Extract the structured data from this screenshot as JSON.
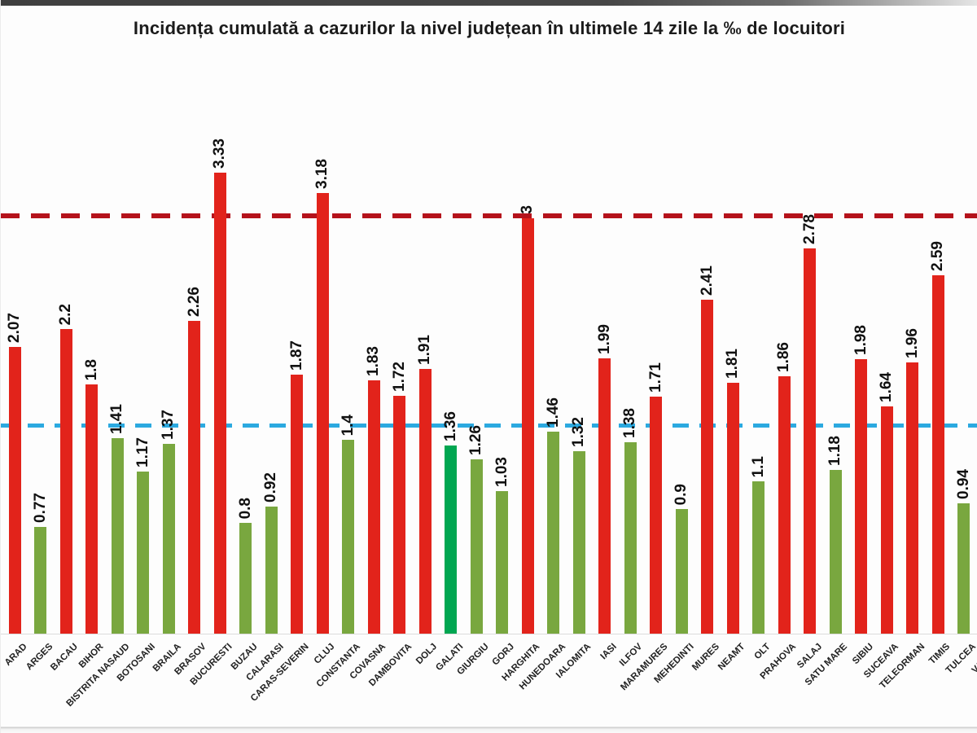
{
  "chart_data": {
    "type": "bar",
    "title": "Incidența cumulată a cazurilor la nivel județean în ultimele 14 zile la ‰ de locuitori",
    "ylabel": "",
    "xlabel": "",
    "ylim": [
      0,
      3.5
    ],
    "grid": "off",
    "legend": "none",
    "thresholds": {
      "red_reference_line": 3.0,
      "blue_reference_line": 1.5
    },
    "colors": {
      "bar_high": "#E2231B",
      "bar_low": "#79A73F",
      "bar_special": "#00A651",
      "red_line": "#B5121B",
      "blue_line": "#2BA9E0"
    },
    "bars": [
      {
        "label": "ARAD",
        "value": 2.07,
        "text": "2.07",
        "level": "high"
      },
      {
        "label": "ARGES",
        "value": 0.77,
        "text": "0.77",
        "level": "low"
      },
      {
        "label": "BACAU",
        "value": 2.2,
        "text": "2.2",
        "level": "high"
      },
      {
        "label": "BIHOR",
        "value": 1.8,
        "text": "1.8",
        "level": "high"
      },
      {
        "label": "BISTRITA NASAUD",
        "value": 1.41,
        "text": "1.41",
        "level": "low"
      },
      {
        "label": "BOTOSANI",
        "value": 1.17,
        "text": "1.17",
        "level": "low"
      },
      {
        "label": "BRAILA",
        "value": 1.37,
        "text": "1.37",
        "level": "low"
      },
      {
        "label": "BRASOV",
        "value": 2.26,
        "text": "2.26",
        "level": "high"
      },
      {
        "label": "BUCURESTI",
        "value": 3.33,
        "text": "3.33",
        "level": "high"
      },
      {
        "label": "BUZAU",
        "value": 0.8,
        "text": "0.8",
        "level": "low"
      },
      {
        "label": "CALARASI",
        "value": 0.92,
        "text": "0.92",
        "level": "low"
      },
      {
        "label": "CARAS-SEVERIN",
        "value": 1.87,
        "text": "1.87",
        "level": "high"
      },
      {
        "label": "CLUJ",
        "value": 3.18,
        "text": "3.18",
        "level": "high"
      },
      {
        "label": "CONSTANTA",
        "value": 1.4,
        "text": "1.4",
        "level": "low"
      },
      {
        "label": "COVASNA",
        "value": 1.83,
        "text": "1.83",
        "level": "high"
      },
      {
        "label": "DAMBOVITA",
        "value": 1.72,
        "text": "1.72",
        "level": "high"
      },
      {
        "label": "DOLJ",
        "value": 1.91,
        "text": "1.91",
        "level": "high"
      },
      {
        "label": "GALATI",
        "value": 1.36,
        "text": "1.36",
        "level": "special"
      },
      {
        "label": "GIURGIU",
        "value": 1.26,
        "text": "1.26",
        "level": "low"
      },
      {
        "label": "GORJ",
        "value": 1.03,
        "text": "1.03",
        "level": "low"
      },
      {
        "label": "HARGHITA",
        "value": 3,
        "text": "3",
        "level": "high"
      },
      {
        "label": "HUNEDOARA",
        "value": 1.46,
        "text": "1.46",
        "level": "low"
      },
      {
        "label": "IALOMITA",
        "value": 1.32,
        "text": "1.32",
        "level": "low"
      },
      {
        "label": "IASI",
        "value": 1.99,
        "text": "1.99",
        "level": "high"
      },
      {
        "label": "ILFOV",
        "value": 1.38,
        "text": "1.38",
        "level": "low"
      },
      {
        "label": "MARAMURES",
        "value": 1.71,
        "text": "1.71",
        "level": "high"
      },
      {
        "label": "MEHEDINTI",
        "value": 0.9,
        "text": "0.9",
        "level": "low"
      },
      {
        "label": "MURES",
        "value": 2.41,
        "text": "2.41",
        "level": "high"
      },
      {
        "label": "NEAMT",
        "value": 1.81,
        "text": "1.81",
        "level": "high"
      },
      {
        "label": "OLT",
        "value": 1.1,
        "text": "1.1",
        "level": "low"
      },
      {
        "label": "PRAHOVA",
        "value": 1.86,
        "text": "1.86",
        "level": "high"
      },
      {
        "label": "SALAJ",
        "value": 2.78,
        "text": "2.78",
        "level": "high"
      },
      {
        "label": "SATU MARE",
        "value": 1.18,
        "text": "1.18",
        "level": "low"
      },
      {
        "label": "SIBIU",
        "value": 1.98,
        "text": "1.98",
        "level": "high"
      },
      {
        "label": "SUCEAVA",
        "value": 1.64,
        "text": "1.64",
        "level": "high"
      },
      {
        "label": "TELEORMAN",
        "value": 1.96,
        "text": "1.96",
        "level": "high"
      },
      {
        "label": "TIMIS",
        "value": 2.59,
        "text": "2.59",
        "level": "high"
      },
      {
        "label": "TULCEA",
        "value": 0.94,
        "text": "0.94",
        "level": "low"
      },
      {
        "label": "VALCEA",
        "value": null,
        "text": null,
        "level": null
      }
    ]
  }
}
